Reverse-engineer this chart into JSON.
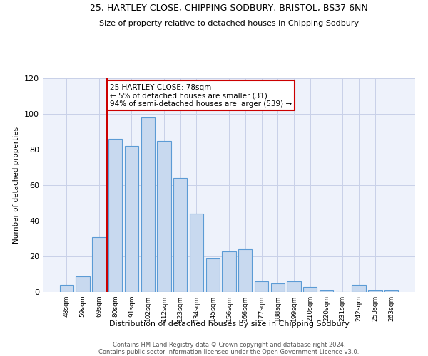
{
  "title1": "25, HARTLEY CLOSE, CHIPPING SODBURY, BRISTOL, BS37 6NN",
  "title2": "Size of property relative to detached houses in Chipping Sodbury",
  "xlabel": "Distribution of detached houses by size in Chipping Sodbury",
  "ylabel": "Number of detached properties",
  "footer1": "Contains HM Land Registry data © Crown copyright and database right 2024.",
  "footer2": "Contains public sector information licensed under the Open Government Licence v3.0.",
  "annotation_line1": "25 HARTLEY CLOSE: 78sqm",
  "annotation_line2": "← 5% of detached houses are smaller (31)",
  "annotation_line3": "94% of semi-detached houses are larger (539) →",
  "bar_labels": [
    "48sqm",
    "59sqm",
    "69sqm",
    "80sqm",
    "91sqm",
    "102sqm",
    "112sqm",
    "123sqm",
    "134sqm",
    "145sqm",
    "156sqm",
    "166sqm",
    "177sqm",
    "188sqm",
    "199sqm",
    "210sqm",
    "220sqm",
    "231sqm",
    "242sqm",
    "253sqm",
    "263sqm"
  ],
  "bar_values": [
    4,
    9,
    31,
    86,
    82,
    98,
    85,
    64,
    44,
    19,
    23,
    24,
    6,
    5,
    6,
    3,
    1,
    0,
    4,
    1,
    1
  ],
  "bar_color": "#c8d9ef",
  "bar_edge_color": "#5b9bd5",
  "vline_x_index": 3,
  "vline_color": "#cc0000",
  "annotation_box_color": "#cc0000",
  "background_color": "#ffffff",
  "plot_bg_color": "#eef2fb",
  "ylim": [
    0,
    120
  ],
  "yticks": [
    0,
    20,
    40,
    60,
    80,
    100,
    120
  ]
}
